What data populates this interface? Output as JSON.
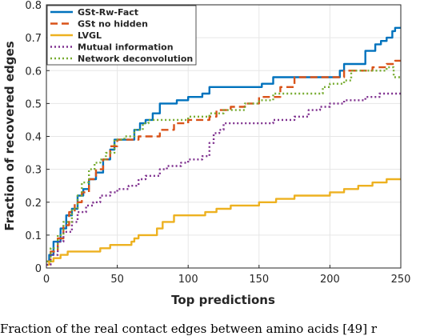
{
  "caption": "Fraction of the real contact edges between amino acids [49] r",
  "chart_data": {
    "type": "line",
    "xlabel": "Top predictions",
    "ylabel": "Fraction of recovered edges",
    "xlim": [
      0,
      250
    ],
    "ylim": [
      0,
      0.8
    ],
    "xticks": [
      0,
      50,
      100,
      150,
      200,
      250
    ],
    "yticks": [
      0,
      0.1,
      0.2,
      0.3,
      0.4,
      0.5,
      0.6,
      0.7,
      0.8
    ],
    "grid": true,
    "legend_position": "top-left",
    "series": [
      {
        "name": "GSt-Rw-Fact",
        "color": "#0072BD",
        "dash": "solid",
        "points": [
          [
            0,
            0.02
          ],
          [
            2,
            0.04
          ],
          [
            5,
            0.08
          ],
          [
            10,
            0.12
          ],
          [
            14,
            0.16
          ],
          [
            18,
            0.18
          ],
          [
            22,
            0.22
          ],
          [
            26,
            0.24
          ],
          [
            30,
            0.27
          ],
          [
            35,
            0.29
          ],
          [
            40,
            0.33
          ],
          [
            45,
            0.36
          ],
          [
            48,
            0.39
          ],
          [
            52,
            0.39
          ],
          [
            58,
            0.39
          ],
          [
            62,
            0.42
          ],
          [
            66,
            0.44
          ],
          [
            70,
            0.45
          ],
          [
            75,
            0.47
          ],
          [
            80,
            0.5
          ],
          [
            90,
            0.5
          ],
          [
            92,
            0.51
          ],
          [
            100,
            0.52
          ],
          [
            110,
            0.53
          ],
          [
            115,
            0.55
          ],
          [
            125,
            0.55
          ],
          [
            148,
            0.55
          ],
          [
            152,
            0.56
          ],
          [
            160,
            0.58
          ],
          [
            200,
            0.58
          ],
          [
            207,
            0.6
          ],
          [
            210,
            0.62
          ],
          [
            218,
            0.62
          ],
          [
            225,
            0.66
          ],
          [
            232,
            0.68
          ],
          [
            236,
            0.69
          ],
          [
            240,
            0.7
          ],
          [
            244,
            0.72
          ],
          [
            246,
            0.73
          ],
          [
            250,
            0.73
          ]
        ]
      },
      {
        "name": "GSt no hidden",
        "color": "#D95319",
        "dash": "dash",
        "points": [
          [
            0,
            0.02
          ],
          [
            3,
            0.05
          ],
          [
            8,
            0.09
          ],
          [
            12,
            0.13
          ],
          [
            16,
            0.17
          ],
          [
            20,
            0.2
          ],
          [
            25,
            0.23
          ],
          [
            30,
            0.27
          ],
          [
            35,
            0.3
          ],
          [
            40,
            0.33
          ],
          [
            45,
            0.37
          ],
          [
            50,
            0.39
          ],
          [
            58,
            0.39
          ],
          [
            62,
            0.39
          ],
          [
            65,
            0.4
          ],
          [
            72,
            0.4
          ],
          [
            80,
            0.42
          ],
          [
            85,
            0.42
          ],
          [
            90,
            0.44
          ],
          [
            100,
            0.45
          ],
          [
            115,
            0.46
          ],
          [
            120,
            0.48
          ],
          [
            130,
            0.49
          ],
          [
            140,
            0.5
          ],
          [
            150,
            0.52
          ],
          [
            165,
            0.55
          ],
          [
            175,
            0.58
          ],
          [
            205,
            0.58
          ],
          [
            210,
            0.6
          ],
          [
            215,
            0.6
          ],
          [
            220,
            0.6
          ],
          [
            230,
            0.61
          ],
          [
            240,
            0.62
          ],
          [
            246,
            0.63
          ],
          [
            250,
            0.63
          ]
        ]
      },
      {
        "name": "LVGL",
        "color": "#EDB120",
        "dash": "solid",
        "points": [
          [
            0,
            0.01
          ],
          [
            2,
            0.02
          ],
          [
            5,
            0.03
          ],
          [
            10,
            0.04
          ],
          [
            15,
            0.05
          ],
          [
            35,
            0.05
          ],
          [
            38,
            0.06
          ],
          [
            45,
            0.07
          ],
          [
            60,
            0.08
          ],
          [
            62,
            0.09
          ],
          [
            65,
            0.1
          ],
          [
            75,
            0.1
          ],
          [
            78,
            0.12
          ],
          [
            82,
            0.14
          ],
          [
            90,
            0.16
          ],
          [
            110,
            0.16
          ],
          [
            112,
            0.17
          ],
          [
            120,
            0.18
          ],
          [
            130,
            0.19
          ],
          [
            145,
            0.19
          ],
          [
            150,
            0.2
          ],
          [
            160,
            0.2
          ],
          [
            162,
            0.21
          ],
          [
            175,
            0.22
          ],
          [
            200,
            0.23
          ],
          [
            210,
            0.24
          ],
          [
            220,
            0.25
          ],
          [
            230,
            0.26
          ],
          [
            240,
            0.27
          ],
          [
            250,
            0.27
          ]
        ]
      },
      {
        "name": "Mutual information",
        "color": "#7E2F8E",
        "dash": "dot",
        "points": [
          [
            0,
            0.01
          ],
          [
            3,
            0.04
          ],
          [
            8,
            0.08
          ],
          [
            12,
            0.11
          ],
          [
            18,
            0.14
          ],
          [
            22,
            0.17
          ],
          [
            28,
            0.19
          ],
          [
            33,
            0.2
          ],
          [
            38,
            0.22
          ],
          [
            45,
            0.23
          ],
          [
            50,
            0.24
          ],
          [
            58,
            0.25
          ],
          [
            65,
            0.27
          ],
          [
            70,
            0.28
          ],
          [
            80,
            0.3
          ],
          [
            85,
            0.31
          ],
          [
            95,
            0.32
          ],
          [
            100,
            0.33
          ],
          [
            110,
            0.34
          ],
          [
            115,
            0.38
          ],
          [
            118,
            0.41
          ],
          [
            122,
            0.42
          ],
          [
            125,
            0.44
          ],
          [
            155,
            0.44
          ],
          [
            160,
            0.45
          ],
          [
            175,
            0.46
          ],
          [
            185,
            0.48
          ],
          [
            193,
            0.49
          ],
          [
            200,
            0.5
          ],
          [
            210,
            0.51
          ],
          [
            225,
            0.52
          ],
          [
            235,
            0.53
          ],
          [
            250,
            0.53
          ]
        ]
      },
      {
        "name": "Network deconvolution",
        "color": "#77AC30",
        "dash": "dot",
        "points": [
          [
            0,
            0.02
          ],
          [
            3,
            0.06
          ],
          [
            8,
            0.1
          ],
          [
            12,
            0.14
          ],
          [
            18,
            0.18
          ],
          [
            22,
            0.22
          ],
          [
            25,
            0.26
          ],
          [
            30,
            0.3
          ],
          [
            34,
            0.32
          ],
          [
            38,
            0.33
          ],
          [
            42,
            0.35
          ],
          [
            48,
            0.39
          ],
          [
            55,
            0.4
          ],
          [
            62,
            0.42
          ],
          [
            68,
            0.44
          ],
          [
            72,
            0.45
          ],
          [
            95,
            0.45
          ],
          [
            100,
            0.46
          ],
          [
            110,
            0.46
          ],
          [
            115,
            0.47
          ],
          [
            125,
            0.48
          ],
          [
            140,
            0.5
          ],
          [
            150,
            0.51
          ],
          [
            160,
            0.53
          ],
          [
            180,
            0.53
          ],
          [
            195,
            0.55
          ],
          [
            200,
            0.56
          ],
          [
            210,
            0.57
          ],
          [
            215,
            0.6
          ],
          [
            235,
            0.6
          ],
          [
            240,
            0.61
          ],
          [
            245,
            0.58
          ],
          [
            250,
            0.58
          ]
        ]
      }
    ]
  }
}
